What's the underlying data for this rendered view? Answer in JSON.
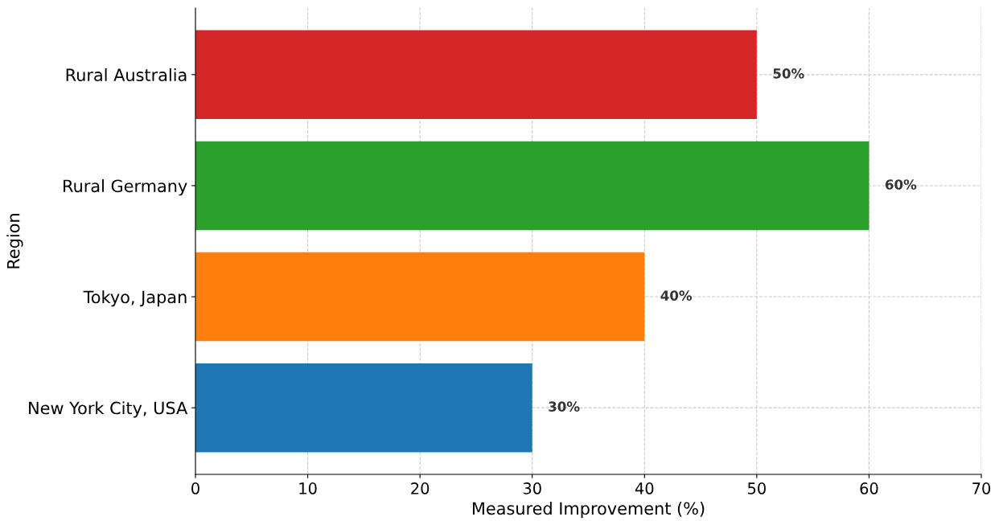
{
  "chart_data": {
    "type": "bar",
    "orientation": "horizontal",
    "xlabel": "Measured Improvement (%)",
    "ylabel": "Region",
    "categories": [
      "Rural Australia",
      "Rural Germany",
      "Tokyo, Japan",
      "New York City, USA"
    ],
    "values": [
      50,
      60,
      40,
      30
    ],
    "colors": [
      "#d62728",
      "#2ca02c",
      "#ff7f0e",
      "#1f77b4"
    ],
    "value_labels": [
      "50%",
      "60%",
      "40%",
      "30%"
    ],
    "xlim": [
      0,
      70
    ],
    "xticks": [
      0,
      10,
      20,
      30,
      40,
      50,
      60,
      70
    ],
    "grid": true
  }
}
